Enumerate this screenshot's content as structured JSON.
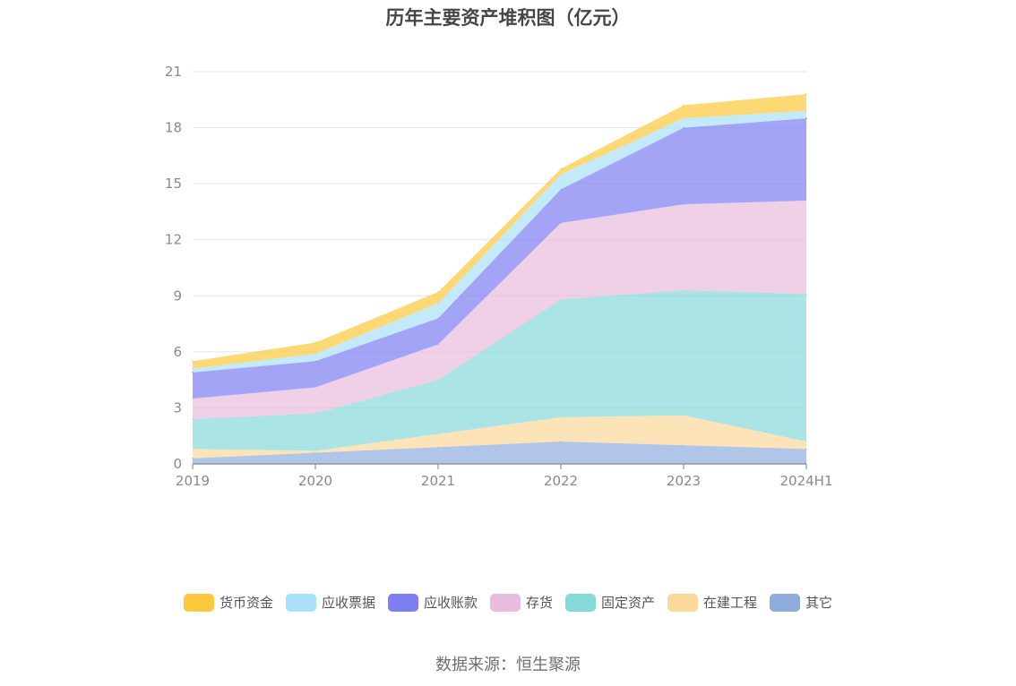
{
  "title": "历年主要资产堆积图（亿元）",
  "source": "数据来源：恒生聚源",
  "legend": [
    {
      "name": "货币资金",
      "color": "#fcc93c"
    },
    {
      "name": "应收票据",
      "color": "#a9e1f9"
    },
    {
      "name": "应收账款",
      "color": "#7d7ef2"
    },
    {
      "name": "存货",
      "color": "#e8bcdc"
    },
    {
      "name": "固定资产",
      "color": "#86d9d8"
    },
    {
      "name": "在建工程",
      "color": "#fcd99a"
    },
    {
      "name": "其它",
      "color": "#8eadde"
    }
  ],
  "chart_data": {
    "type": "area",
    "stacked": true,
    "title": "历年主要资产堆积图（亿元）",
    "categories": [
      "2019",
      "2020",
      "2021",
      "2022",
      "2023",
      "2024H1"
    ],
    "ylim": [
      0,
      21
    ],
    "yticks": [
      0,
      3,
      6,
      9,
      12,
      15,
      18,
      21
    ],
    "grid": true,
    "legend_position": "bottom",
    "series": [
      {
        "name": "其它",
        "color": "#8eadde",
        "values": [
          0.3,
          0.6,
          0.9,
          1.2,
          1.0,
          0.8
        ]
      },
      {
        "name": "在建工程",
        "color": "#fcd99a",
        "values": [
          0.5,
          0.1,
          0.7,
          1.3,
          1.6,
          0.4
        ]
      },
      {
        "name": "固定资产",
        "color": "#86d9d8",
        "values": [
          1.6,
          2.0,
          2.9,
          6.3,
          6.7,
          7.9
        ]
      },
      {
        "name": "存货",
        "color": "#e8bcdc",
        "values": [
          1.1,
          1.4,
          1.9,
          4.1,
          4.6,
          5.0
        ]
      },
      {
        "name": "应收账款",
        "color": "#7d7ef2",
        "values": [
          1.4,
          1.4,
          1.4,
          1.8,
          4.1,
          4.4
        ]
      },
      {
        "name": "应收票据",
        "color": "#a9e1f9",
        "values": [
          0.2,
          0.4,
          0.8,
          0.8,
          0.5,
          0.4
        ]
      },
      {
        "name": "货币资金",
        "color": "#fcc93c",
        "values": [
          0.4,
          0.6,
          0.6,
          0.3,
          0.7,
          0.9
        ]
      }
    ]
  }
}
